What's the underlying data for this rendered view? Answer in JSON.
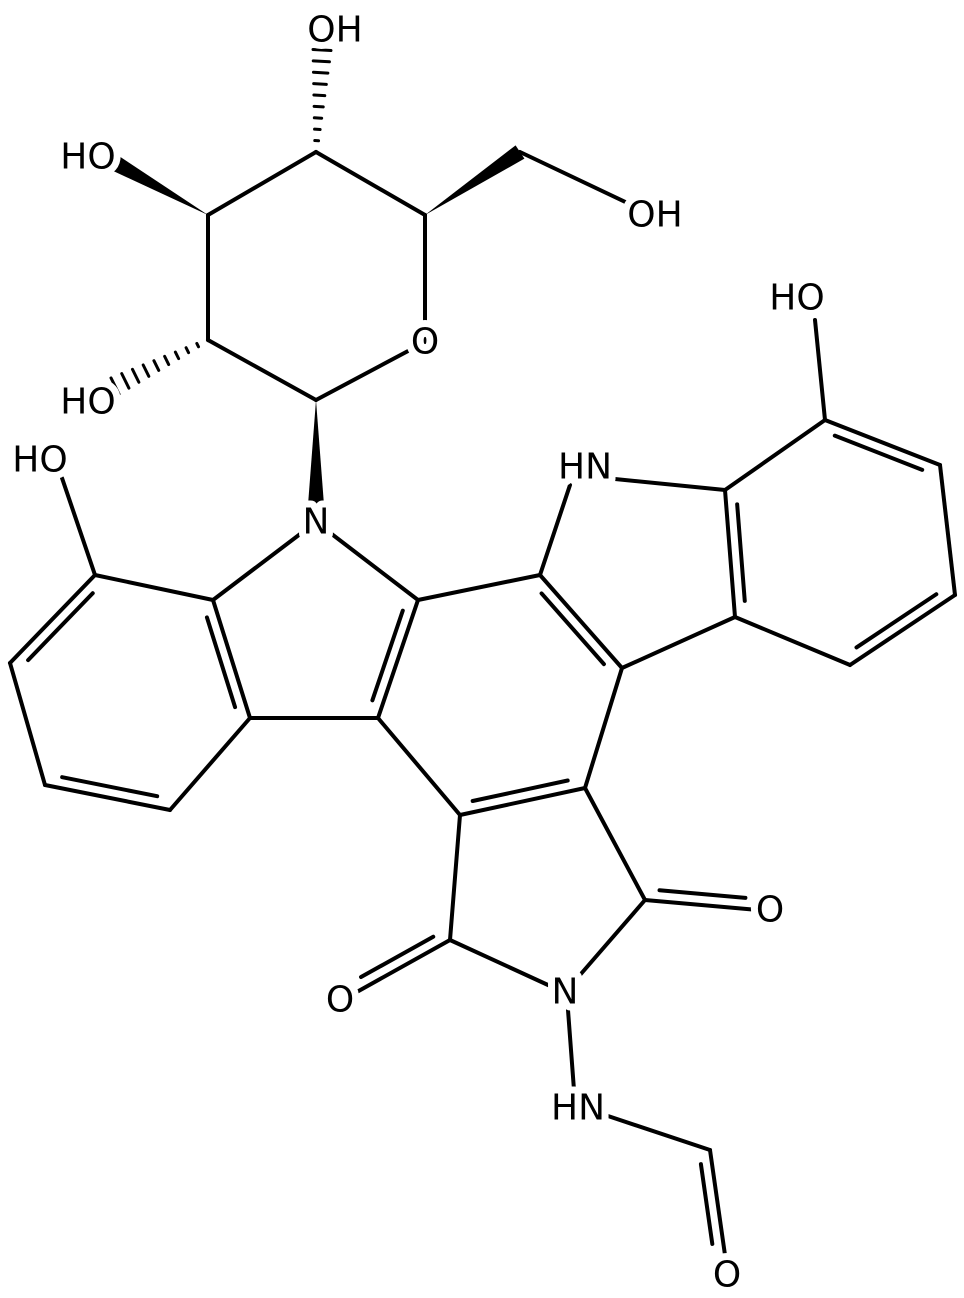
{
  "atoms": [
    "OH",
    "HO",
    "OH",
    "O",
    "HO",
    "HO",
    "N",
    "HN",
    "HO",
    "O",
    "O",
    "N",
    "HN",
    "O"
  ]
}
